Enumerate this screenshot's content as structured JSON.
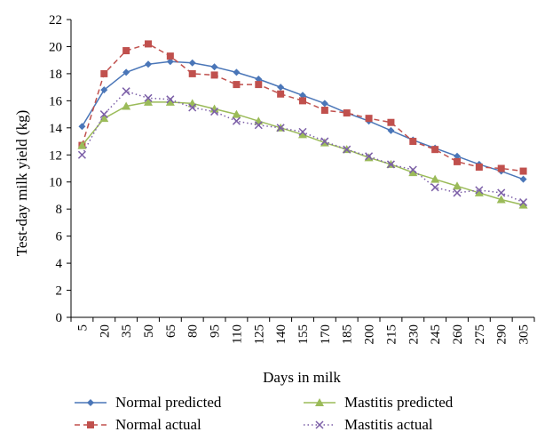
{
  "chart_data": {
    "type": "line",
    "title": "",
    "xlabel": "Days in milk",
    "ylabel": "Test-day milk yield (kg)",
    "x": [
      5,
      20,
      35,
      50,
      65,
      80,
      95,
      110,
      125,
      140,
      155,
      170,
      185,
      200,
      215,
      230,
      245,
      260,
      275,
      290,
      305
    ],
    "ylim": [
      0,
      22
    ],
    "yticks": [
      0,
      2,
      4,
      6,
      8,
      10,
      12,
      14,
      16,
      18,
      20,
      22
    ],
    "grid": false,
    "legend_position": "bottom",
    "series": [
      {
        "name": "Normal predicted",
        "color": "#4a76b8",
        "marker": "diamond",
        "dash": "solid",
        "values": [
          14.1,
          16.8,
          18.1,
          18.7,
          18.9,
          18.8,
          18.5,
          18.1,
          17.6,
          17.0,
          16.4,
          15.8,
          15.1,
          14.5,
          13.8,
          13.1,
          12.5,
          11.9,
          11.3,
          10.8,
          10.2
        ]
      },
      {
        "name": "Normal actual",
        "color": "#c0504d",
        "marker": "square",
        "dash": "dashed",
        "values": [
          12.7,
          18.0,
          19.7,
          20.2,
          19.3,
          18.0,
          17.9,
          17.2,
          17.2,
          16.5,
          16.0,
          15.3,
          15.1,
          14.7,
          14.4,
          13.0,
          12.4,
          11.5,
          11.1,
          11.0,
          10.8
        ]
      },
      {
        "name": "Mastitis predicted",
        "color": "#9bbb59",
        "marker": "triangle",
        "dash": "solid",
        "values": [
          12.7,
          14.7,
          15.6,
          15.9,
          15.9,
          15.8,
          15.4,
          15.0,
          14.5,
          14.0,
          13.5,
          12.9,
          12.4,
          11.8,
          11.3,
          10.7,
          10.2,
          9.7,
          9.2,
          8.7,
          8.3
        ]
      },
      {
        "name": "Mastitis actual",
        "color": "#7b5ea7",
        "marker": "x",
        "dash": "dotted",
        "values": [
          12.0,
          15.0,
          16.7,
          16.2,
          16.1,
          15.5,
          15.2,
          14.5,
          14.2,
          14.0,
          13.7,
          13.0,
          12.4,
          11.9,
          11.3,
          10.9,
          9.6,
          9.2,
          9.4,
          9.2,
          8.5
        ]
      }
    ]
  }
}
